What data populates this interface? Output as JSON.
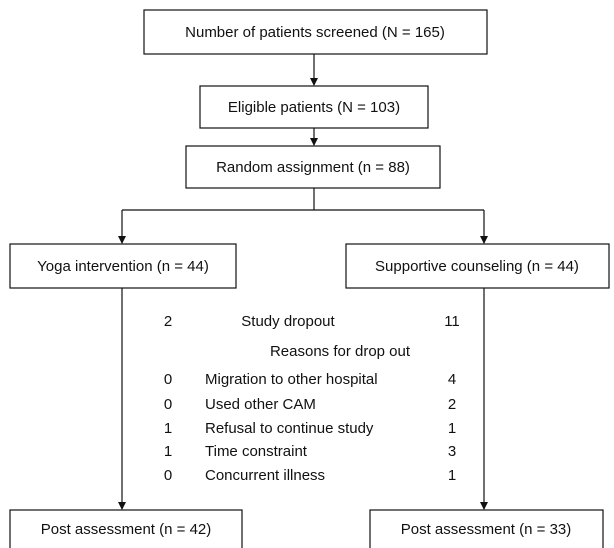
{
  "nodes": [
    {
      "label": "Number of patients screened (N = 165)"
    },
    {
      "label": "Eligible patients (N = 103)"
    },
    {
      "label": "Random assignment (n = 88)"
    },
    {
      "label": "Yoga intervention (n = 44)"
    },
    {
      "label": "Supportive counseling (n = 44)"
    },
    {
      "label": "Post assessment (n = 42)"
    },
    {
      "label": "Post assessment (n = 33)"
    }
  ],
  "dropout": {
    "summary": {
      "yoga": 2,
      "label": "Study dropout",
      "counseling": 11
    },
    "heading": "Reasons for drop out",
    "rows": [
      {
        "yoga": 0,
        "reason": "Migration to other hospital",
        "counseling": 4
      },
      {
        "yoga": 0,
        "reason": "Used other CAM",
        "counseling": 2
      },
      {
        "yoga": 1,
        "reason": "Refusal to continue study",
        "counseling": 1
      },
      {
        "yoga": 1,
        "reason": "Time constraint",
        "counseling": 3
      },
      {
        "yoga": 0,
        "reason": "Concurrent illness",
        "counseling": 1
      }
    ]
  }
}
